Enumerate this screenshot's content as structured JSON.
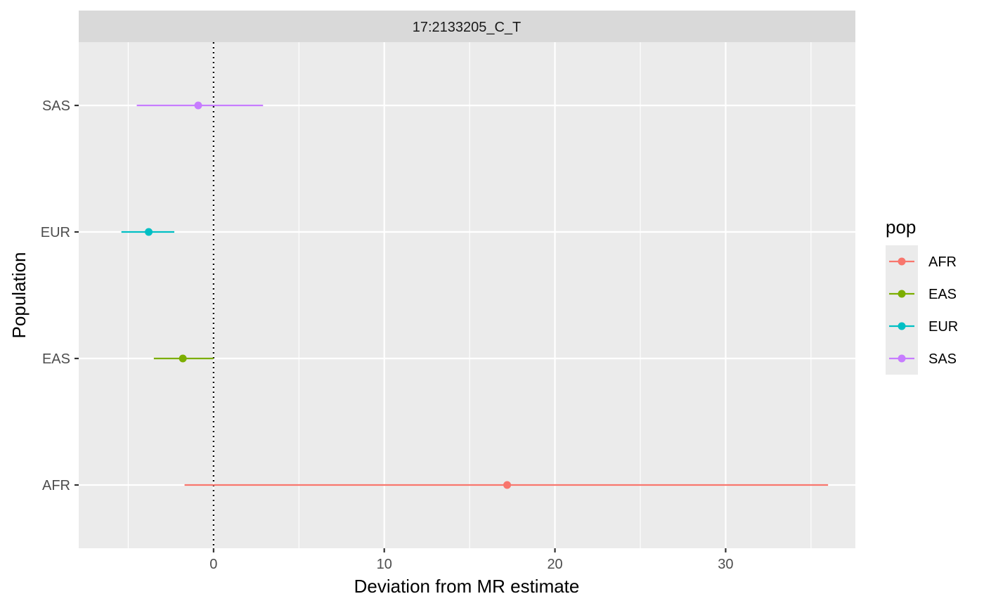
{
  "chart_data": {
    "type": "forest",
    "facet_title": "17:2133205_C_T",
    "xlabel": "Deviation from MR estimate",
    "ylabel": "Population",
    "xlim": [
      -7.9,
      37.6
    ],
    "x_ticks": [
      0,
      10,
      20,
      30
    ],
    "x_tick_labels": [
      "0",
      "10",
      "20",
      "30"
    ],
    "reference_line_x": 0,
    "categories": [
      "AFR",
      "EAS",
      "EUR",
      "SAS"
    ],
    "legend_title": "pop",
    "series": [
      {
        "name": "AFR",
        "estimate": 17.2,
        "lower": -1.7,
        "upper": 36.0,
        "color": "#F8766D"
      },
      {
        "name": "EAS",
        "estimate": -1.8,
        "lower": -3.5,
        "upper": 0.0,
        "color": "#7CAE00"
      },
      {
        "name": "EUR",
        "estimate": -3.8,
        "lower": -5.4,
        "upper": -2.3,
        "color": "#00BFC4"
      },
      {
        "name": "SAS",
        "estimate": -0.9,
        "lower": -4.5,
        "upper": 2.9,
        "color": "#C77CFF"
      }
    ],
    "grid": true,
    "legend_position": "right"
  }
}
